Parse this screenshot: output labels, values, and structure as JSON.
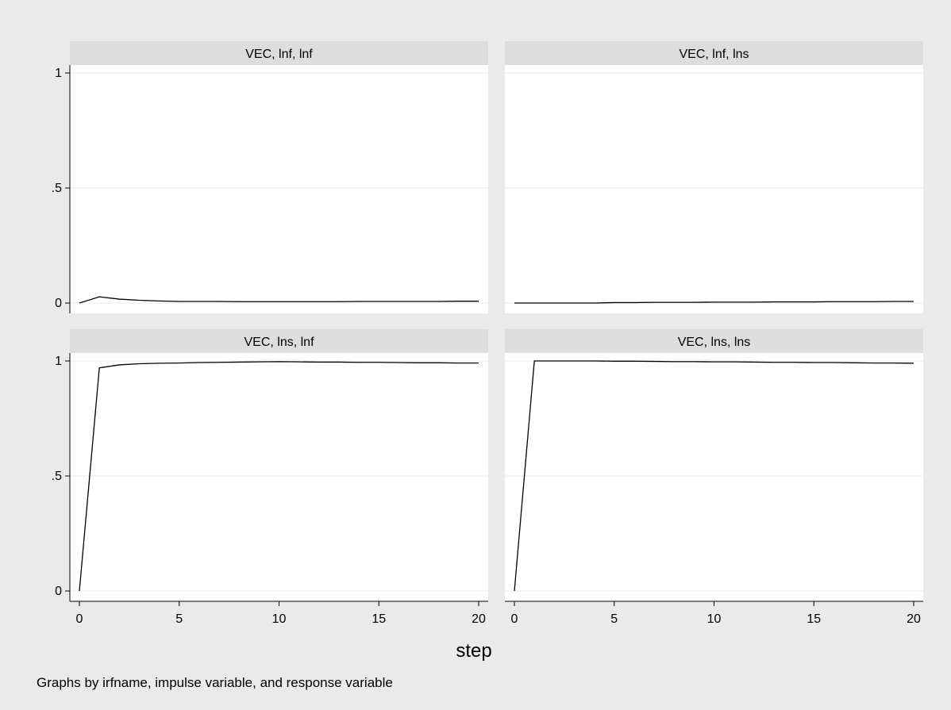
{
  "chart_data": {
    "type": "line",
    "layout": "2x2 small multiples",
    "xlabel": "step",
    "note": "Graphs by irfname, impulse variable, and response variable",
    "xlim": [
      0,
      20
    ],
    "ylim": [
      0,
      1
    ],
    "x_ticks": [
      0,
      5,
      10,
      15,
      20
    ],
    "y_ticks": [
      0,
      0.5,
      1
    ],
    "y_tick_labels": [
      "0",
      ".5",
      "1"
    ],
    "grid": "horizontal",
    "x": [
      0,
      1,
      2,
      3,
      4,
      5,
      6,
      7,
      8,
      9,
      10,
      11,
      12,
      13,
      14,
      15,
      16,
      17,
      18,
      19,
      20
    ],
    "panels": [
      {
        "title": "VEC, lnf, lnf",
        "values": [
          0.0,
          0.027,
          0.017,
          0.012,
          0.009,
          0.007,
          0.007,
          0.007,
          0.006,
          0.006,
          0.006,
          0.006,
          0.006,
          0.006,
          0.007,
          0.007,
          0.007,
          0.007,
          0.007,
          0.008,
          0.008
        ]
      },
      {
        "title": "VEC, lnf, lns",
        "values": [
          0.0,
          0.0,
          0.0,
          0.0,
          0.0,
          0.002,
          0.002,
          0.003,
          0.003,
          0.003,
          0.004,
          0.004,
          0.004,
          0.005,
          0.005,
          0.005,
          0.006,
          0.006,
          0.006,
          0.007,
          0.007
        ]
      },
      {
        "title": "VEC, lns, lnf",
        "values": [
          0.0,
          0.97,
          0.983,
          0.988,
          0.99,
          0.991,
          0.993,
          0.994,
          0.995,
          0.996,
          0.997,
          0.996,
          0.995,
          0.995,
          0.994,
          0.994,
          0.993,
          0.992,
          0.992,
          0.991,
          0.991
        ]
      },
      {
        "title": "VEC, lns, lns",
        "values": [
          0.0,
          1.0,
          1.0,
          1.0,
          1.0,
          0.999,
          0.999,
          0.998,
          0.997,
          0.997,
          0.996,
          0.996,
          0.995,
          0.994,
          0.994,
          0.993,
          0.993,
          0.992,
          0.991,
          0.991,
          0.99
        ]
      }
    ]
  },
  "colors": {
    "background": "#EAEAEA",
    "plot_region": "#FFFFFF",
    "panel_strip": "#DDDDDD",
    "gridline": "#EAF0F4",
    "line": "#000000"
  }
}
